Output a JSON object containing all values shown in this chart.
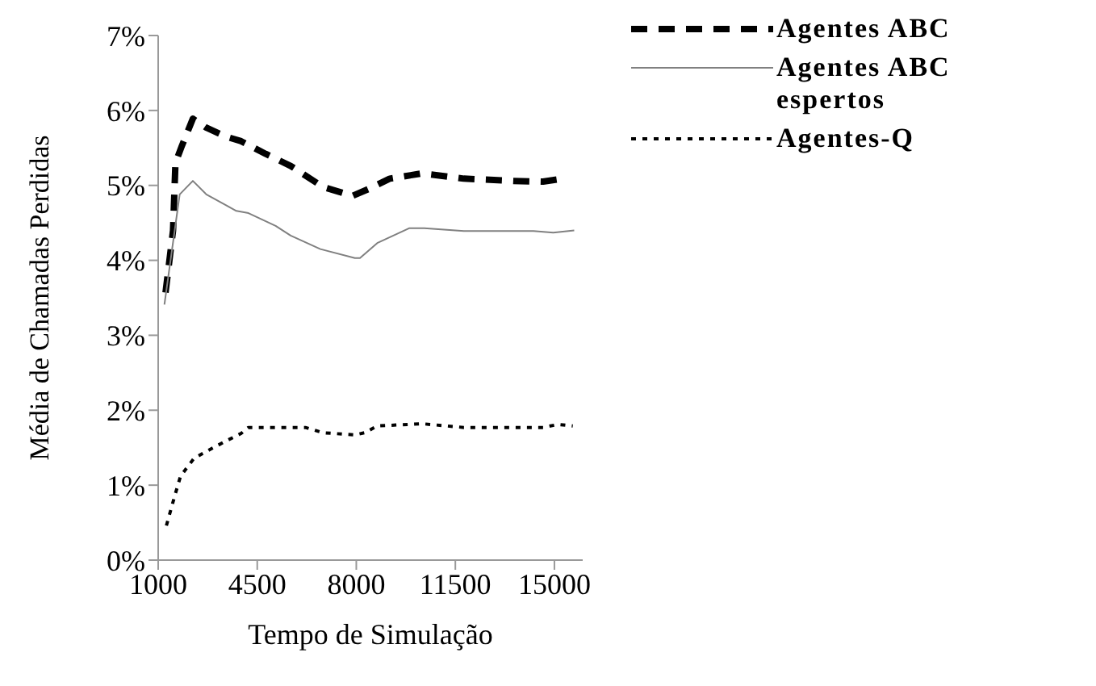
{
  "chart_data": {
    "type": "line",
    "xlabel": "Tempo de Simulação",
    "ylabel": "Média de Chamadas Perdidas",
    "xlim": [
      1000,
      16000
    ],
    "xticks": [
      1000,
      4500,
      8000,
      11500,
      15000
    ],
    "ylim": [
      0,
      7
    ],
    "yticks": [
      {
        "value": 0,
        "label": "0%"
      },
      {
        "value": 1,
        "label": "1%"
      },
      {
        "value": 2,
        "label": "2%"
      },
      {
        "value": 3,
        "label": "3%"
      },
      {
        "value": 4,
        "label": "4%"
      },
      {
        "value": 5,
        "label": "5%"
      },
      {
        "value": 6,
        "label": "6%"
      },
      {
        "value": 7,
        "label": "7%"
      }
    ],
    "grid": false,
    "legend": "top right",
    "marker": "none",
    "series": [
      {
        "name": "Agentes ABC",
        "color": "#000000",
        "line_style": "dashed",
        "x": [
          1260,
          1525,
          1610,
          1830,
          2225,
          2700,
          3400,
          3930,
          4800,
          5680,
          6820,
          7870,
          8480,
          9180,
          10320,
          11800,
          13550,
          14600,
          15300
        ],
        "values": [
          3.57,
          4.4,
          5.3,
          5.52,
          5.89,
          5.77,
          5.65,
          5.59,
          5.42,
          5.26,
          4.98,
          4.86,
          4.96,
          5.09,
          5.16,
          5.09,
          5.06,
          5.05,
          5.09
        ]
      },
      {
        "name": "Agentes ABC espertos",
        "color": "#808080",
        "line_style": "solid",
        "x": [
          1220,
          1760,
          2225,
          2700,
          3760,
          4190,
          5150,
          5680,
          6730,
          7950,
          8130,
          8740,
          9880,
          10400,
          11800,
          14260,
          14960,
          15700
        ],
        "values": [
          3.41,
          4.88,
          5.06,
          4.88,
          4.66,
          4.63,
          4.46,
          4.33,
          4.15,
          4.03,
          4.03,
          4.23,
          4.43,
          4.43,
          4.39,
          4.39,
          4.37,
          4.4
        ]
      },
      {
        "name": "Agentes-Q",
        "color": "#000000",
        "line_style": "dotted",
        "x": [
          1290,
          1610,
          1790,
          2270,
          2700,
          3400,
          3930,
          4190,
          6200,
          6820,
          7950,
          8300,
          8740,
          10320,
          11800,
          14600,
          15120,
          15650
        ],
        "values": [
          0.46,
          0.89,
          1.12,
          1.36,
          1.45,
          1.59,
          1.69,
          1.77,
          1.77,
          1.7,
          1.67,
          1.7,
          1.79,
          1.82,
          1.77,
          1.77,
          1.81,
          1.79
        ]
      }
    ]
  }
}
